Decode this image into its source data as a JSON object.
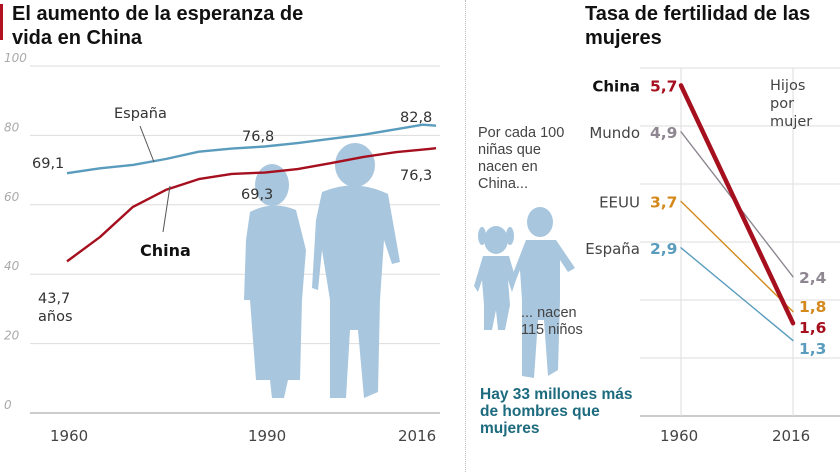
{
  "left_title": "El aumento de la esperanza de vida en China",
  "right_title": "Tasa de fertilidad de las mujeres",
  "colors": {
    "china": "#a50f1e",
    "espana": "#5a9cbd",
    "mundo": "#8e8791",
    "eeuu": "#d4891c",
    "silhouette": "#a8c6dd",
    "highlight": "#1d6b7e"
  },
  "middle": {
    "intro": "Por cada 100 niñas que nacen en China...",
    "outro": "... nacen 115 niños",
    "highlight": "Hay 33 millones más de hombres que mujeres"
  },
  "chart_data": [
    {
      "type": "line",
      "title": "El aumento de la esperanza de vida en China",
      "ylim": [
        0,
        100
      ],
      "yticks": [
        "0",
        "20",
        "40",
        "60",
        "80",
        "100"
      ],
      "xlim": [
        1960,
        2016
      ],
      "xticks": [
        "1960",
        "1990",
        "2016"
      ],
      "series": [
        {
          "name": "España",
          "x": [
            1960,
            1965,
            1970,
            1975,
            1980,
            1985,
            1990,
            1995,
            2000,
            2005,
            2010,
            2014,
            2016
          ],
          "values": [
            69.1,
            70.5,
            71.5,
            73.2,
            75.3,
            76.2,
            76.8,
            77.8,
            79.0,
            80.2,
            81.8,
            83.1,
            82.8
          ]
        },
        {
          "name": "China",
          "x": [
            1960,
            1965,
            1970,
            1975,
            1980,
            1985,
            1990,
            1995,
            2000,
            2005,
            2010,
            2015,
            2016
          ],
          "values": [
            43.7,
            50.7,
            59.4,
            64.3,
            67.4,
            68.9,
            69.3,
            70.3,
            72.0,
            73.8,
            75.2,
            76.1,
            76.3
          ]
        }
      ],
      "annotations": {
        "espana_label": "España",
        "china_label": "China",
        "l1": "69,1",
        "l2": "76,8",
        "l3": "82,8",
        "l4": "43,7",
        "l4b": "años",
        "l5": "69,3",
        "l6": "76,3"
      }
    },
    {
      "type": "line",
      "title": "Tasa de fertilidad de las mujeres",
      "ylabel": "Hijos por mujer",
      "ylim": [
        0,
        6
      ],
      "categories": [
        "1960",
        "2016"
      ],
      "series": [
        {
          "name": "China",
          "values": [
            5.7,
            1.6
          ],
          "labels": [
            "5,7",
            "1,6"
          ]
        },
        {
          "name": "Mundo",
          "values": [
            4.9,
            2.4
          ],
          "labels": [
            "4,9",
            "2,4"
          ]
        },
        {
          "name": "EEUU",
          "values": [
            3.7,
            1.8
          ],
          "labels": [
            "3,7",
            "1,8"
          ]
        },
        {
          "name": "España",
          "values": [
            2.9,
            1.3
          ],
          "labels": [
            "2,9",
            "1,3"
          ]
        }
      ]
    }
  ]
}
